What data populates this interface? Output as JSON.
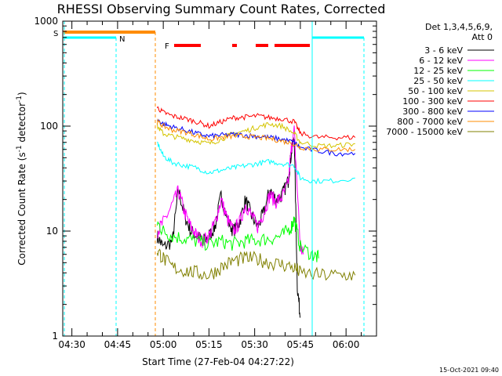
{
  "chart_data": {
    "type": "line",
    "title": "RHESSI Observing Summary Count Rates, Corrected",
    "xlabel": "Start Time (27-Feb-04 04:27:22)",
    "ylabel": "Corrected Count Rate (s⁻¹ detector⁻¹)",
    "ylabel_main": "Corrected Count Rate (s",
    "ylabel_sup1": "-1",
    "ylabel_mid": " detector",
    "ylabel_sup2": "-1",
    "ylabel_end": ")",
    "x_tick_labels": [
      "04:30",
      "04:45",
      "05:00",
      "05:15",
      "05:30",
      "05:45",
      "06:00"
    ],
    "x_ticks_min": [
      3,
      18,
      33,
      48,
      63,
      78,
      93
    ],
    "xlim_min": [
      0,
      103
    ],
    "y_scale": "log",
    "ylim": [
      1,
      1000
    ],
    "y_tick_labels": [
      "1",
      "10",
      "100",
      "1000"
    ],
    "y_ticks": [
      1,
      10,
      100,
      1000
    ],
    "grid": false,
    "legend_header": [
      "Det 1,3,4,5,6,9,",
      "Att 0"
    ],
    "legend_position": "right",
    "series": [
      {
        "name": "3 - 6 keV",
        "color": "#000000"
      },
      {
        "name": "6 - 12 keV",
        "color": "#ff00ff"
      },
      {
        "name": "12 - 25 keV",
        "color": "#00ff00"
      },
      {
        "name": "25 - 50 keV",
        "color": "#00ffff"
      },
      {
        "name": "50 - 100 keV",
        "color": "#d4c400"
      },
      {
        "name": "100 - 300 keV",
        "color": "#ff0000"
      },
      {
        "name": "300 - 800 keV",
        "color": "#0000ff"
      },
      {
        "name": "800 - 7000 keV",
        "color": "#ff8c00"
      },
      {
        "name": "7000 - 15000 keV",
        "color": "#808000"
      }
    ],
    "series_points": {
      "3 - 6 keV": [
        [
          31,
          9
        ],
        [
          33,
          7
        ],
        [
          36,
          8
        ],
        [
          38,
          25
        ],
        [
          40,
          14
        ],
        [
          42,
          10
        ],
        [
          44,
          9
        ],
        [
          46,
          8
        ],
        [
          48,
          9
        ],
        [
          50,
          11
        ],
        [
          52,
          22
        ],
        [
          54,
          13
        ],
        [
          56,
          10
        ],
        [
          58,
          12
        ],
        [
          60,
          20
        ],
        [
          62,
          14
        ],
        [
          64,
          11
        ],
        [
          66,
          15
        ],
        [
          68,
          25
        ],
        [
          70,
          20
        ],
        [
          72,
          22
        ],
        [
          74,
          30
        ],
        [
          75,
          55
        ],
        [
          76,
          80
        ],
        [
          77,
          3
        ],
        [
          78,
          1.5
        ]
      ],
      "6 - 12 keV": [
        [
          31,
          10
        ],
        [
          33,
          12
        ],
        [
          36,
          18
        ],
        [
          38,
          24
        ],
        [
          40,
          15
        ],
        [
          42,
          11
        ],
        [
          44,
          9
        ],
        [
          46,
          8
        ],
        [
          48,
          9
        ],
        [
          50,
          12
        ],
        [
          52,
          20
        ],
        [
          54,
          13
        ],
        [
          56,
          10
        ],
        [
          58,
          12
        ],
        [
          60,
          18
        ],
        [
          62,
          14
        ],
        [
          64,
          11
        ],
        [
          66,
          15
        ],
        [
          68,
          22
        ],
        [
          70,
          19
        ],
        [
          72,
          21
        ],
        [
          74,
          28
        ],
        [
          75,
          60
        ],
        [
          76,
          90
        ],
        [
          78,
          7
        ],
        [
          79,
          6
        ]
      ],
      "12 - 25 keV": [
        [
          31,
          12
        ],
        [
          33,
          10
        ],
        [
          36,
          9
        ],
        [
          40,
          8.5
        ],
        [
          44,
          8
        ],
        [
          48,
          7.5
        ],
        [
          52,
          8
        ],
        [
          56,
          7.5
        ],
        [
          60,
          8
        ],
        [
          64,
          8.2
        ],
        [
          68,
          8.5
        ],
        [
          72,
          9
        ],
        [
          75,
          11
        ],
        [
          76,
          13
        ],
        [
          78,
          7
        ],
        [
          82,
          6
        ],
        [
          84,
          5.5
        ]
      ],
      "25 - 50 keV": [
        [
          31,
          70
        ],
        [
          33,
          52
        ],
        [
          36,
          45
        ],
        [
          40,
          42
        ],
        [
          44,
          40
        ],
        [
          48,
          36
        ],
        [
          52,
          38
        ],
        [
          56,
          40
        ],
        [
          60,
          42
        ],
        [
          64,
          44
        ],
        [
          68,
          46
        ],
        [
          72,
          44
        ],
        [
          76,
          42
        ],
        [
          78,
          32
        ],
        [
          82,
          30
        ],
        [
          88,
          30
        ],
        [
          96,
          32
        ]
      ],
      "50 - 100 keV": [
        [
          31,
          100
        ],
        [
          33,
          85
        ],
        [
          36,
          80
        ],
        [
          40,
          76
        ],
        [
          44,
          72
        ],
        [
          48,
          68
        ],
        [
          52,
          75
        ],
        [
          56,
          85
        ],
        [
          60,
          90
        ],
        [
          64,
          98
        ],
        [
          68,
          105
        ],
        [
          72,
          100
        ],
        [
          76,
          85
        ],
        [
          78,
          70
        ],
        [
          84,
          65
        ],
        [
          90,
          65
        ],
        [
          96,
          68
        ]
      ],
      "100 - 300 keV": [
        [
          31,
          150
        ],
        [
          33,
          135
        ],
        [
          36,
          125
        ],
        [
          40,
          118
        ],
        [
          44,
          110
        ],
        [
          48,
          100
        ],
        [
          52,
          110
        ],
        [
          56,
          120
        ],
        [
          60,
          122
        ],
        [
          64,
          125
        ],
        [
          68,
          120
        ],
        [
          72,
          118
        ],
        [
          76,
          110
        ],
        [
          78,
          85
        ],
        [
          84,
          78
        ],
        [
          90,
          78
        ],
        [
          96,
          78
        ]
      ],
      "300 - 800 keV": [
        [
          31,
          115
        ],
        [
          33,
          105
        ],
        [
          36,
          98
        ],
        [
          40,
          92
        ],
        [
          44,
          85
        ],
        [
          48,
          80
        ],
        [
          52,
          82
        ],
        [
          56,
          83
        ],
        [
          60,
          82
        ],
        [
          64,
          80
        ],
        [
          68,
          78
        ],
        [
          72,
          75
        ],
        [
          76,
          70
        ],
        [
          78,
          62
        ],
        [
          84,
          58
        ],
        [
          90,
          55
        ],
        [
          96,
          55
        ]
      ],
      "800 - 7000 keV": [
        [
          31,
          110
        ],
        [
          33,
          100
        ],
        [
          36,
          92
        ],
        [
          40,
          88
        ],
        [
          44,
          82
        ],
        [
          48,
          75
        ],
        [
          52,
          78
        ],
        [
          56,
          80
        ],
        [
          60,
          80
        ],
        [
          64,
          78
        ],
        [
          68,
          76
        ],
        [
          72,
          72
        ],
        [
          76,
          68
        ],
        [
          78,
          63
        ],
        [
          84,
          60
        ],
        [
          90,
          60
        ],
        [
          96,
          60
        ]
      ],
      "7000 - 15000 keV": [
        [
          31,
          6.5
        ],
        [
          33,
          5.5
        ],
        [
          36,
          4.5
        ],
        [
          40,
          4.2
        ],
        [
          44,
          4
        ],
        [
          48,
          3.8
        ],
        [
          52,
          4.5
        ],
        [
          56,
          5.2
        ],
        [
          60,
          5.5
        ],
        [
          64,
          5.4
        ],
        [
          68,
          5
        ],
        [
          72,
          4.8
        ],
        [
          76,
          4.5
        ],
        [
          78,
          4
        ],
        [
          84,
          3.8
        ],
        [
          90,
          3.8
        ],
        [
          96,
          3.8
        ]
      ]
    },
    "annotations": [
      {
        "text": "S",
        "color": "#ff8c00"
      },
      {
        "text": "N",
        "color": "#00ffff"
      },
      {
        "text": "F",
        "color": "#ff0000"
      }
    ],
    "timestamp": "15-Oct-2021 09:40"
  }
}
